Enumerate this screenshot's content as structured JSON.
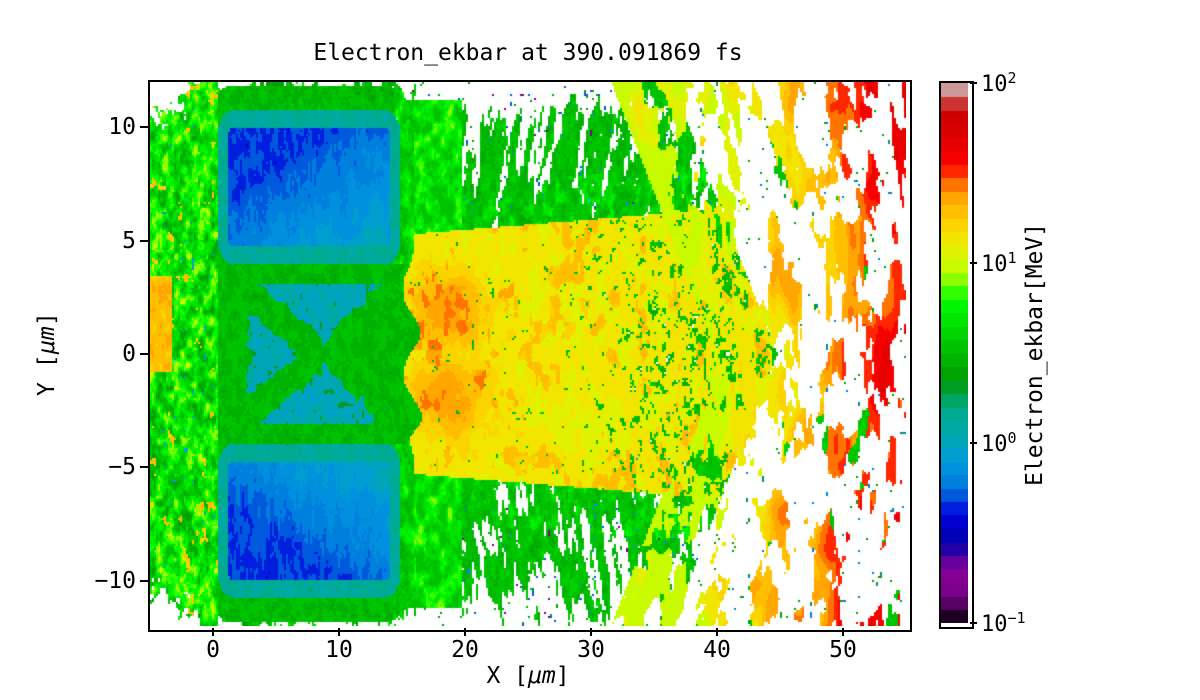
{
  "figure": {
    "title": "Electron_ekbar at 390.091869 fs",
    "background_color": "#ffffff"
  },
  "axes": {
    "xlabel": {
      "parts": [
        "X [",
        "μm",
        "]"
      ]
    },
    "ylabel": {
      "parts": [
        "Y [",
        "μm",
        "]"
      ]
    },
    "xlim": [
      -5,
      55
    ],
    "ylim": [
      -12,
      12
    ],
    "x_ticks": [
      {
        "label": "0",
        "value": 0
      },
      {
        "label": "10",
        "value": 10
      },
      {
        "label": "20",
        "value": 20
      },
      {
        "label": "30",
        "value": 30
      },
      {
        "label": "40",
        "value": 40
      },
      {
        "label": "50",
        "value": 50
      }
    ],
    "y_ticks": [
      {
        "label": "10",
        "value": 10
      },
      {
        "label": "5",
        "value": 5
      },
      {
        "label": "0",
        "value": 0
      },
      {
        "label": "−5",
        "value": -5
      },
      {
        "label": "−10",
        "value": -10
      }
    ]
  },
  "colorbar": {
    "label": "Electron_ekbar[MeV]",
    "scale": "log",
    "range_mev": [
      0.1,
      100
    ],
    "ticks": [
      {
        "base": "10",
        "exp": "2",
        "value": 100
      },
      {
        "base": "10",
        "exp": "1",
        "value": 10
      },
      {
        "base": "10",
        "exp": "0",
        "value": 1
      },
      {
        "base": "10",
        "exp": "−1",
        "value": 0.1
      }
    ],
    "colormap": {
      "name": "nipy_spectral",
      "levels": 40,
      "stops": [
        [
          0.0,
          0,
          0,
          0
        ],
        [
          0.05,
          119,
          0,
          136
        ],
        [
          0.1,
          136,
          0,
          153
        ],
        [
          0.15,
          0,
          0,
          170
        ],
        [
          0.2,
          0,
          0,
          221
        ],
        [
          0.25,
          0,
          119,
          221
        ],
        [
          0.3,
          0,
          153,
          221
        ],
        [
          0.35,
          0,
          170,
          170
        ],
        [
          0.4,
          0,
          170,
          136
        ],
        [
          0.45,
          0,
          153,
          0
        ],
        [
          0.5,
          0,
          187,
          0
        ],
        [
          0.55,
          0,
          221,
          0
        ],
        [
          0.6,
          0,
          255,
          0
        ],
        [
          0.65,
          187,
          255,
          0
        ],
        [
          0.7,
          238,
          238,
          0
        ],
        [
          0.75,
          255,
          204,
          0
        ],
        [
          0.8,
          255,
          153,
          0
        ],
        [
          0.85,
          255,
          0,
          0
        ],
        [
          0.9,
          221,
          0,
          0
        ],
        [
          0.95,
          204,
          0,
          0
        ],
        [
          1.0,
          204,
          204,
          204
        ]
      ]
    }
  },
  "chart_data": {
    "type": "heatmap",
    "title": "Electron_ekbar at 390.091869 fs",
    "xlabel": "X [μm]",
    "ylabel": "Y [μm]",
    "xlim": [
      -5,
      55
    ],
    "ylim": [
      -12,
      12
    ],
    "colorbar_label": "Electron_ekbar[MeV]",
    "value_scale": "log",
    "value_range_mev": [
      0.1,
      100
    ],
    "colormap": "nipy_spectral",
    "description": "Per-cell mean electron kinetic energy (ekbar) from a particle-in-cell laser-plasma simulation at t = 390.091869 fs. Two cold (≈0.4–1 MeV, blue) slab targets sit at x ≈ 0–15 μm (y ≈ 4–10.7 μm and y ≈ −10.7–−4 μm), separated by a low-energy channel converging at x ≈ 8.6 μm. A hot (≈10–27 MeV, yellow-orange) plume fills x ≈ 15–45 μm surrounded by ≈2–5 MeV green filaments, breaking up into radial 10–100 MeV (red) fast-electron bunches toward the right edge on a white (no-data) background.",
    "regions": {
      "ambient_plasma_left": {
        "x": [
          -5,
          0.45
        ],
        "y": [
          -12,
          12
        ],
        "mev": [
          2.6,
          10
        ],
        "note": "green-yellow plasma mottle, white gaps in top/bottom corners"
      },
      "left_edge_hot_spot": {
        "x": [
          -5,
          -3.2
        ],
        "y": [
          -0.8,
          3.4
        ],
        "mev": [
          14,
          26
        ]
      },
      "target_block_top": {
        "x": [
          0.35,
          14.9
        ],
        "y": [
          3.95,
          10.75
        ],
        "corner_radius": 1.2,
        "interior_mev": [
          0.36,
          0.95
        ],
        "sheath_mev": [
          1.0,
          1.7
        ],
        "rim_mev": [
          2.2,
          4.2
        ]
      },
      "target_block_bottom": {
        "x": [
          0.35,
          14.9
        ],
        "y": [
          -10.75,
          -3.95
        ],
        "corner_radius": 1.2,
        "interior_mev": [
          0.36,
          0.95
        ],
        "sheath_mev": [
          1.0,
          1.7
        ],
        "rim_mev": [
          2.2,
          4.2
        ]
      },
      "channel": {
        "x": [
          0.45,
          16.2
        ],
        "y": [
          -4.0,
          4.0
        ],
        "background_mev": [
          0.78,
          1.35
        ],
        "green_web_mev": [
          2.3,
          3.9
        ],
        "apex": [
          8.6,
          0
        ]
      },
      "plume_core": {
        "x": [
          15.5,
          46
        ],
        "half_width_um": [
          5.3,
          6.7
        ],
        "mev": [
          10,
          16
        ],
        "green_crack_mev": [
          2.5,
          3.9
        ]
      },
      "orange_lobes": {
        "centers": [
          [
            18.8,
            1.9
          ],
          [
            18.8,
            -1.9
          ]
        ],
        "mev": [
          18,
          27
        ]
      },
      "shoulder_mottle": {
        "x": [
          15.2,
          19.8
        ],
        "abs_y": [
          4,
          11.2
        ],
        "mev": [
          3.2,
          12
        ]
      },
      "filament_halo": {
        "x": [
          15.5,
          46
        ],
        "mev": [
          2.2,
          5.5
        ],
        "blue_speck_mev": 0.7,
        "purple_speck_mev": 0.15
      },
      "fast_streaks": {
        "x_onset": 36,
        "origin": [
          12,
          0
        ],
        "mev": [
          10,
          100
        ],
        "rosy_peak_mev": 95,
        "green_streak_mev": [
          2.8,
          4.4
        ]
      }
    }
  }
}
